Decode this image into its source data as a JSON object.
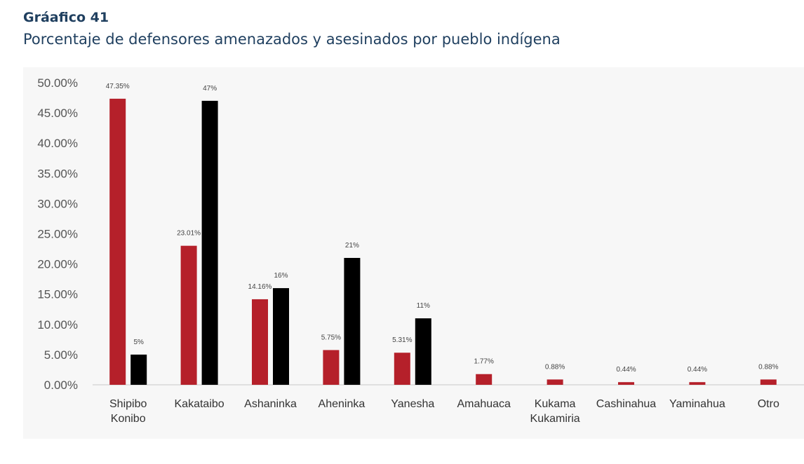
{
  "header": {
    "title": "Gráafico 41",
    "subtitle": "Porcentaje de defensores amenazados y asesinados por pueblo indígena"
  },
  "chart_data": {
    "type": "bar",
    "categories": [
      [
        "Shipibo",
        "Konibo"
      ],
      [
        "Kakataibo"
      ],
      [
        "Ashaninka"
      ],
      [
        "Aheninka"
      ],
      [
        "Yanesha"
      ],
      [
        "Amahuaca"
      ],
      [
        "Kukama",
        "Kukamiria"
      ],
      [
        "Cashinahua"
      ],
      [
        "Yaminahua"
      ],
      [
        "Otro"
      ]
    ],
    "series": [
      {
        "color": "#b5202a",
        "values": [
          47.35,
          23.01,
          14.16,
          5.75,
          5.31,
          1.77,
          0.88,
          0.44,
          0.44,
          0.88
        ],
        "labels": [
          "47.35%",
          "23.01%",
          "14.16%",
          "5.75%",
          "5.31%",
          "1.77%",
          "0.88%",
          "0.44%",
          "0.44%",
          "0.88%"
        ]
      },
      {
        "color": "#000000",
        "values": [
          5,
          47,
          16,
          21,
          11,
          null,
          null,
          null,
          null,
          null
        ],
        "labels": [
          "5%",
          "47%",
          "16%",
          "21%",
          "11%",
          null,
          null,
          null,
          null,
          null
        ]
      }
    ],
    "ylim": [
      0,
      50
    ],
    "yticks": [
      0,
      5,
      10,
      15,
      20,
      25,
      30,
      35,
      40,
      45,
      50
    ],
    "ytick_labels": [
      "0.00%",
      "5.00%",
      "10.00%",
      "15.00%",
      "20.00%",
      "25.00%",
      "30.00%",
      "35.00%",
      "40.00%",
      "45.00%",
      "50.00%"
    ],
    "grid": false,
    "legend": "none"
  }
}
